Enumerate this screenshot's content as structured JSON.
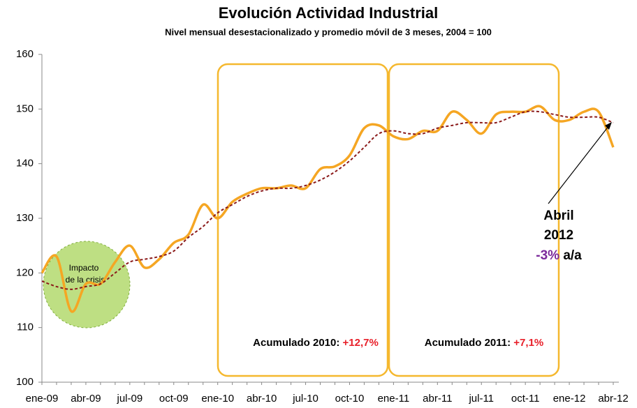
{
  "chart_data": {
    "type": "line",
    "title": "Evolución Actividad Industrial",
    "subtitle": "Nivel mensual desestacionalizado y promedio móvil de 3 meses, 2004 = 100",
    "categories": [
      "ene-09",
      null,
      null,
      "abr-09",
      null,
      null,
      "jul-09",
      null,
      null,
      "oct-09",
      null,
      null,
      "ene-10",
      null,
      null,
      "abr-10",
      null,
      null,
      "jul-10",
      null,
      null,
      "oct-10",
      null,
      null,
      "ene-11",
      null,
      null,
      "abr-11",
      null,
      null,
      "jul-11",
      null,
      null,
      "oct-11",
      null,
      null,
      "ene-12",
      null,
      null,
      "abr-12"
    ],
    "series": [
      {
        "color": "#f5a623",
        "values": [
          120,
          123,
          113,
          118,
          118,
          122,
          125,
          121,
          122.5,
          125.5,
          127,
          132.5,
          130,
          133,
          134.5,
          135.5,
          135.5,
          136,
          135.5,
          139,
          139.5,
          141.5,
          146.5,
          147,
          145,
          144.5,
          146,
          146,
          149.5,
          148,
          145.5,
          149,
          149.5,
          149.5,
          150.5,
          148,
          148,
          149.5,
          149.5,
          143
        ]
      },
      {
        "color": "#8b1a1a",
        "dashed": true,
        "values": [
          118.5,
          117.5,
          117,
          117.5,
          118,
          120,
          122,
          122.5,
          123,
          124,
          126.5,
          128.5,
          131,
          132.5,
          134,
          135,
          135.5,
          135.5,
          136,
          137,
          138.5,
          140.5,
          143,
          145.5,
          146,
          145.5,
          145.5,
          146.5,
          147,
          147.5,
          147.5,
          147.5,
          148.5,
          149.5,
          149.5,
          149,
          148.5,
          148.5,
          148.5,
          147.5
        ]
      }
    ],
    "ylim": [
      100,
      160
    ],
    "yticks": [
      100,
      110,
      120,
      130,
      140,
      150,
      160
    ],
    "annotations": {
      "crisis": [
        "Impacto",
        "de la crisis"
      ],
      "acumulado_2010": {
        "label": "Acumulado 2010:",
        "value": "+12,7%"
      },
      "acumulado_2011": {
        "label": "Acumulado 2011:",
        "value": "+7,1%"
      },
      "abril": {
        "line1": "Abril",
        "line2": "2012",
        "value": "-3%",
        "unit": "a/a"
      }
    }
  }
}
